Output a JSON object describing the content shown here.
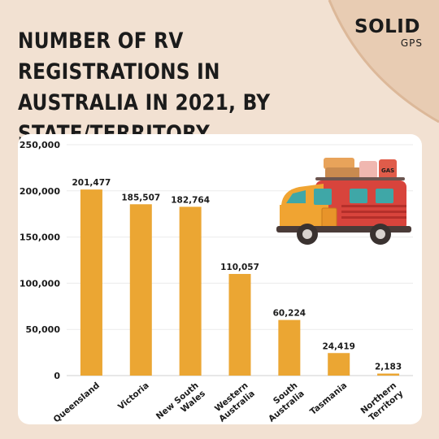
{
  "header": {
    "title": "NUMBER OF RV REGISTRATIONS IN AUSTRALIA IN 2021, BY STATE/TERRITORY"
  },
  "logo": {
    "brand": "SOLID",
    "sub": "GPS"
  },
  "colors": {
    "background": "#f2e1d2",
    "bar": "#eba633",
    "arc": "#e3c3a6",
    "panel": "#ffffff"
  },
  "illustration": {
    "icon": "camper-van-icon",
    "sign": "GAS"
  },
  "chart_data": {
    "type": "bar",
    "title": "NUMBER OF RV REGISTRATIONS IN AUSTRALIA IN 2021, BY STATE/TERRITORY",
    "xlabel": "",
    "ylabel": "",
    "ylim": [
      0,
      250000
    ],
    "yticks": [
      0,
      50000,
      100000,
      150000,
      200000,
      250000
    ],
    "ytick_labels": [
      "0",
      "50,000",
      "100,000",
      "150,000",
      "200,000",
      "250,000"
    ],
    "categories": [
      "Queensland",
      "Victoria",
      "New South Wales",
      "Western Australia",
      "South Australia",
      "Tasmania",
      "Northern Territory"
    ],
    "category_lines": [
      [
        "Queensland"
      ],
      [
        "Victoria"
      ],
      [
        "New South",
        "Wales"
      ],
      [
        "Western",
        "Australia"
      ],
      [
        "South",
        "Australia"
      ],
      [
        "Tasmania"
      ],
      [
        "Northern",
        "Territory"
      ]
    ],
    "values": [
      201477,
      185507,
      182764,
      110057,
      60224,
      24419,
      2183
    ],
    "value_labels": [
      "201,477",
      "185,507",
      "182,764",
      "110,057",
      "60,224",
      "24,419",
      "2,183"
    ],
    "grid": true,
    "legend": "none"
  }
}
